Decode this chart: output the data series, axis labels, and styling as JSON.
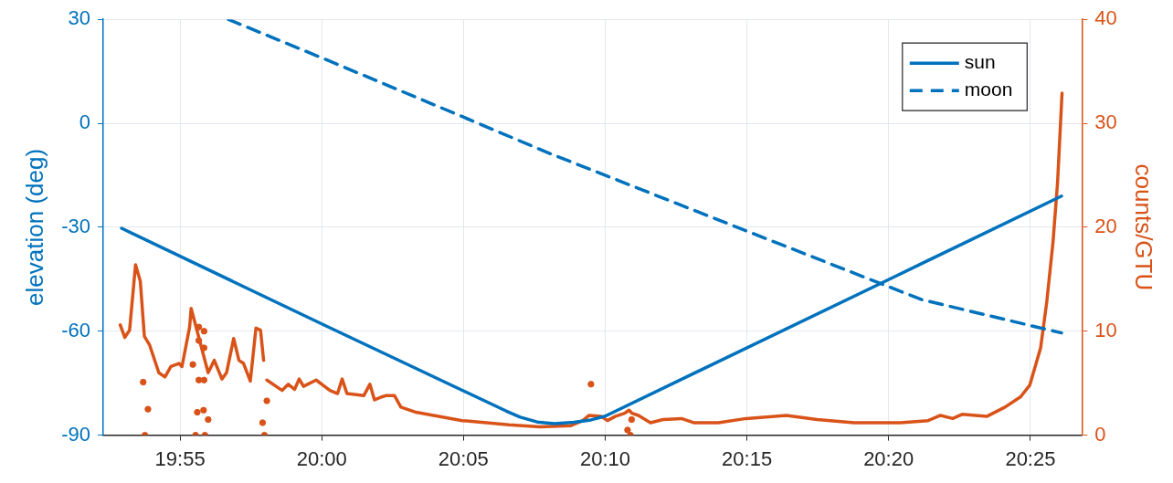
{
  "chart_data": {
    "type": "line",
    "xlabel": null,
    "ylabel": "elevation (deg)",
    "y2label": "counts/GTU",
    "xlim": [
      19.8715,
      20.447
    ],
    "xticks": [
      {
        "value": 19.9167,
        "label": "19:55"
      },
      {
        "value": 20.0,
        "label": "20:00"
      },
      {
        "value": 20.0833,
        "label": "20:05"
      },
      {
        "value": 20.1667,
        "label": "20:10"
      },
      {
        "value": 20.25,
        "label": "20:15"
      },
      {
        "value": 20.3333,
        "label": "20:20"
      },
      {
        "value": 20.4167,
        "label": "20:25"
      }
    ],
    "ylim": [
      -90,
      30
    ],
    "yticks": [
      -90,
      -60,
      -30,
      0,
      30
    ],
    "y2lim": [
      0,
      40
    ],
    "y2ticks": [
      0,
      10,
      20,
      30,
      40
    ],
    "grid": true,
    "legend": "top right",
    "marker": "none",
    "series": [
      {
        "name": "sun",
        "color": "#0072bd",
        "line_style": "solid",
        "x": [
          19.8823,
          20.0,
          20.1083,
          20.1167,
          20.1267,
          20.1367,
          20.1483,
          20.1583,
          20.1667,
          20.3333,
          20.435
        ],
        "values": [
          -30.3,
          -57.9,
          -83.0,
          -84.8,
          -86.2,
          -86.7,
          -86.3,
          -85.6,
          -84.5,
          -45.1,
          -21.0
        ]
      },
      {
        "name": "moon",
        "color": "#0072bd",
        "line_style": "dashed",
        "x": [
          19.945,
          20.0,
          20.0833,
          20.1315,
          20.2442,
          20.3528,
          20.435
        ],
        "values": [
          30,
          18.9,
          1.8,
          -8.2,
          -30.0,
          -50.9,
          -60.5
        ]
      },
      {
        "color": "#d95319",
        "axis": "y2",
        "line_style": "solid",
        "x": [
          19.8815,
          19.8842,
          19.887,
          19.8905,
          19.8933,
          19.8957,
          19.8987,
          19.9042,
          19.9078,
          19.9113,
          19.916,
          19.9178,
          19.9223,
          19.9232,
          19.9332,
          19.9368,
          19.9413,
          19.944,
          19.9482,
          19.9513,
          19.954,
          19.958,
          19.9613,
          19.964,
          19.9658,
          19.9667,
          19.9677,
          19.9767,
          19.9803,
          19.984,
          19.9867,
          19.9893,
          19.9967,
          20.0048,
          20.0093,
          20.012,
          20.0148,
          20.0247,
          20.0283,
          20.031,
          20.0357,
          20.0375,
          20.0428,
          20.0465,
          20.0555,
          20.0827,
          20.11,
          20.1282,
          20.1462,
          20.1535,
          20.1572,
          20.1643,
          20.168,
          20.1725,
          20.178,
          20.1807,
          20.1825,
          20.1862,
          20.1933,
          20.2007,
          20.2115,
          20.2187,
          20.2332,
          20.2495,
          20.2732,
          20.2913,
          20.313,
          20.3402,
          20.3565,
          20.3638,
          20.371,
          20.3765,
          20.391,
          20.4018,
          20.411,
          20.4163,
          20.4227,
          20.4263,
          20.43,
          20.4327,
          20.4345,
          20.4353
        ],
        "values": [
          10.6,
          9.4,
          10.1,
          16.4,
          14.8,
          9.5,
          8.7,
          6.0,
          5.6,
          6.6,
          6.9,
          6.6,
          10.4,
          12.2,
          6.0,
          7.2,
          5.4,
          6.0,
          9.3,
          7.2,
          6.9,
          5.2,
          10.3,
          10.1,
          7.2,
          null,
          5.3,
          4.3,
          4.9,
          4.4,
          5.4,
          4.7,
          5.3,
          4.3,
          4.0,
          5.4,
          4.0,
          3.8,
          4.9,
          3.4,
          3.7,
          3.8,
          3.8,
          2.7,
          2.2,
          1.4,
          1.0,
          0.8,
          0.9,
          1.4,
          1.9,
          1.8,
          1.4,
          1.8,
          2.1,
          2.4,
          2.1,
          1.9,
          1.2,
          1.5,
          1.6,
          1.2,
          1.2,
          1.6,
          1.9,
          1.5,
          1.2,
          1.2,
          1.4,
          1.9,
          1.6,
          2.0,
          1.8,
          2.7,
          3.7,
          4.8,
          8.4,
          12.8,
          18.6,
          24.4,
          30.3,
          32.9
        ]
      },
      {
        "type": "scatter",
        "marker": "circle",
        "color": "#d95319",
        "axis": "y2",
        "x": [
          19.895,
          19.8978,
          19.896,
          19.9242,
          19.9268,
          19.9305,
          19.9332,
          19.9277,
          19.9308,
          19.9258,
          19.9313,
          19.9277,
          19.9277,
          19.9308,
          19.9308,
          19.9677,
          19.9652,
          19.9663,
          20.1583,
          20.1798,
          20.1815,
          20.1822
        ],
        "values": [
          5.1,
          2.5,
          0,
          6.8,
          2.2,
          2.4,
          1.5,
          5.3,
          5.3,
          0,
          0,
          10.4,
          9.1,
          10.0,
          8.4,
          3.3,
          1.2,
          0,
          4.9,
          0.5,
          0,
          1.5
        ]
      }
    ]
  }
}
